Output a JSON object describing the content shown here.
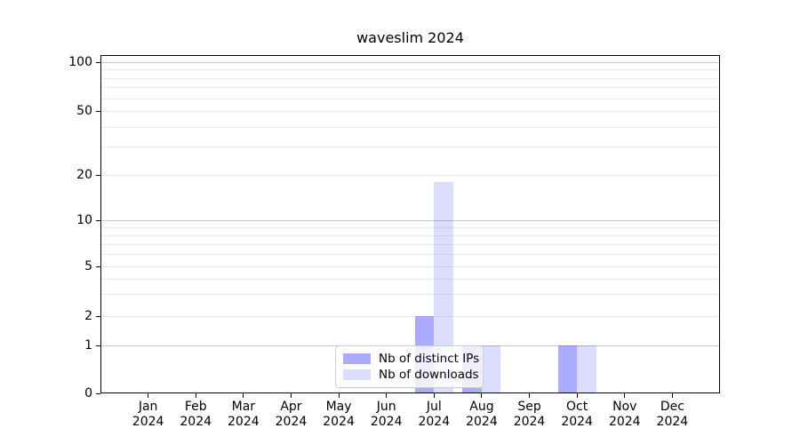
{
  "chart_data": {
    "type": "bar",
    "title": "waveslim 2024",
    "x_categories_month": [
      "Jan",
      "Feb",
      "Mar",
      "Apr",
      "May",
      "Jun",
      "Jul",
      "Aug",
      "Sep",
      "Oct",
      "Nov",
      "Dec"
    ],
    "x_year_label": "2024",
    "series": [
      {
        "name": "Nb of distinct IPs",
        "color": "#0000ff",
        "alpha": 0.33,
        "values": [
          0,
          0,
          0,
          0,
          0,
          0,
          2,
          1,
          0,
          1,
          0,
          0
        ]
      },
      {
        "name": "Nb of downloads",
        "color": "#0000ff",
        "alpha": 0.135,
        "values": [
          0,
          0,
          0,
          0,
          0,
          0,
          18,
          1,
          0,
          1,
          0,
          0
        ]
      }
    ],
    "y_ticks": [
      0,
      1,
      2,
      5,
      10,
      20,
      50,
      100
    ],
    "y_scale": "log-like (0,1,2,5,10,20,50,100)",
    "ylim": [
      0,
      110
    ],
    "grid": "horizontal, minor log lines",
    "legend_position": "lower center",
    "colors": {
      "bar_distinct_ips_on_white": "#abaff9",
      "bar_downloads_on_white": "#dcdcfa",
      "grid_major": "#c9c9c9",
      "grid_minor": "#ebebeb",
      "spine": "#000000",
      "legend_border": "#cccccc"
    }
  }
}
